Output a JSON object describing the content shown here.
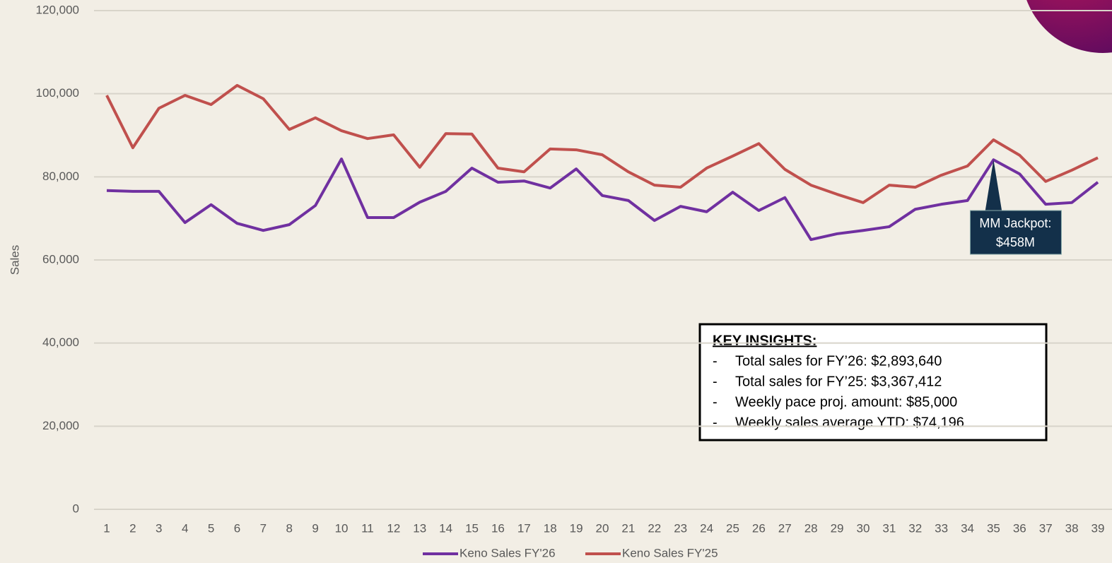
{
  "chart_data": {
    "type": "line",
    "y_label": "Sales",
    "categories": [
      1,
      2,
      3,
      4,
      5,
      6,
      7,
      8,
      9,
      10,
      11,
      12,
      13,
      14,
      15,
      16,
      17,
      18,
      19,
      20,
      21,
      22,
      23,
      24,
      25,
      26,
      27,
      28,
      29,
      30,
      31,
      32,
      33,
      34,
      35,
      36,
      37,
      38,
      39
    ],
    "series": [
      {
        "name": "Keno Sales FY'26",
        "color": "#7030a0",
        "values": [
          76700,
          76500,
          76500,
          69000,
          73300,
          68800,
          67100,
          68500,
          73100,
          84300,
          70200,
          70200,
          73900,
          76500,
          82100,
          78700,
          79000,
          77300,
          81900,
          75500,
          74300,
          69500,
          72900,
          71600,
          76300,
          71900,
          75000,
          64900,
          66300,
          67100,
          68000,
          72200,
          73400,
          74300,
          84100,
          80700,
          73400,
          73800,
          78700
        ]
      },
      {
        "name": "Keno Sales FY'25",
        "color": "#c0504d",
        "values": [
          99600,
          87000,
          96500,
          99600,
          97400,
          102000,
          98800,
          91400,
          94200,
          91100,
          89200,
          90100,
          82300,
          90400,
          90300,
          82100,
          81200,
          86700,
          86500,
          85300,
          81200,
          78000,
          77500,
          82100,
          85000,
          88000,
          81800,
          78000,
          75800,
          73800,
          78000,
          77500,
          80400,
          82600,
          88900,
          85200,
          78900,
          81600,
          84600
        ]
      }
    ],
    "ylim": [
      0,
      120000
    ],
    "yticks": [
      0,
      {
        "value": 20000,
        "label": "20,000"
      },
      {
        "value": 40000,
        "label": "40,000"
      },
      {
        "value": 60000,
        "label": "60,000"
      },
      {
        "value": 80000,
        "label": "80,000"
      },
      {
        "value": 100000,
        "label": "100,000"
      },
      {
        "value": 120000,
        "label": "120,000"
      }
    ],
    "grid": true,
    "annotation": [
      "MM Jackpot:",
      "$458M"
    ],
    "insights": {
      "title": "KEY INSIGHTS:",
      "items": [
        "Total sales for FY’26: $2,893,640",
        "Total sales for FY’25: $3,367,412",
        "Weekly pace proj. amount: $85,000",
        "Weekly sales average YTD: $74,196"
      ]
    }
  }
}
